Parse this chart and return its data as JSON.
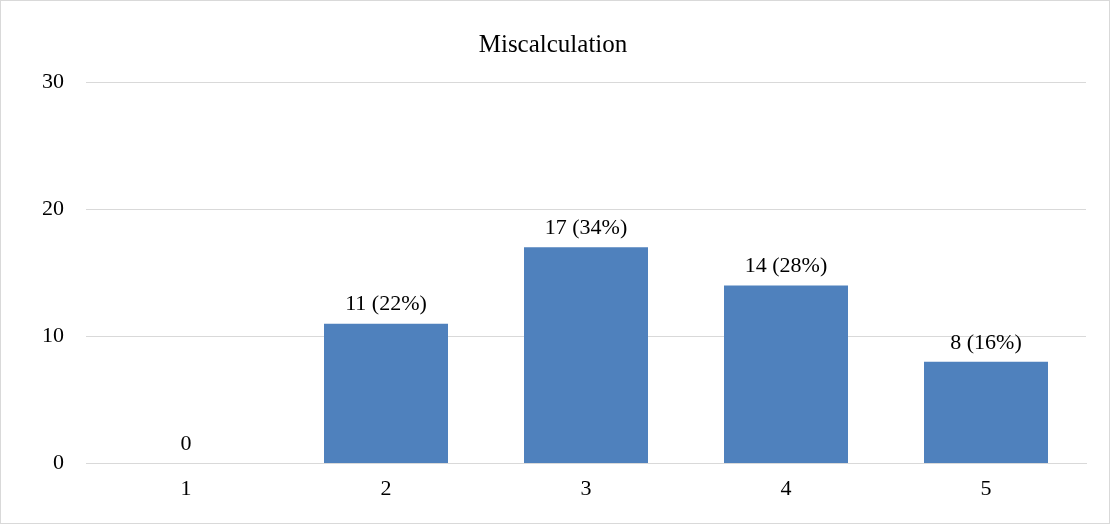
{
  "chart_data": {
    "type": "bar",
    "title": "Miscalculation",
    "categories": [
      "1",
      "2",
      "3",
      "4",
      "5"
    ],
    "values": [
      0,
      11,
      17,
      14,
      8
    ],
    "value_labels": [
      "0",
      "11 (22%)",
      "17 (34%)",
      "14 (28%)",
      "8 (16%)"
    ],
    "color": "#4f81bd",
    "ylim": [
      0,
      30
    ],
    "yticks": [
      0,
      10,
      20,
      30
    ],
    "grid": "y",
    "legend": false
  }
}
